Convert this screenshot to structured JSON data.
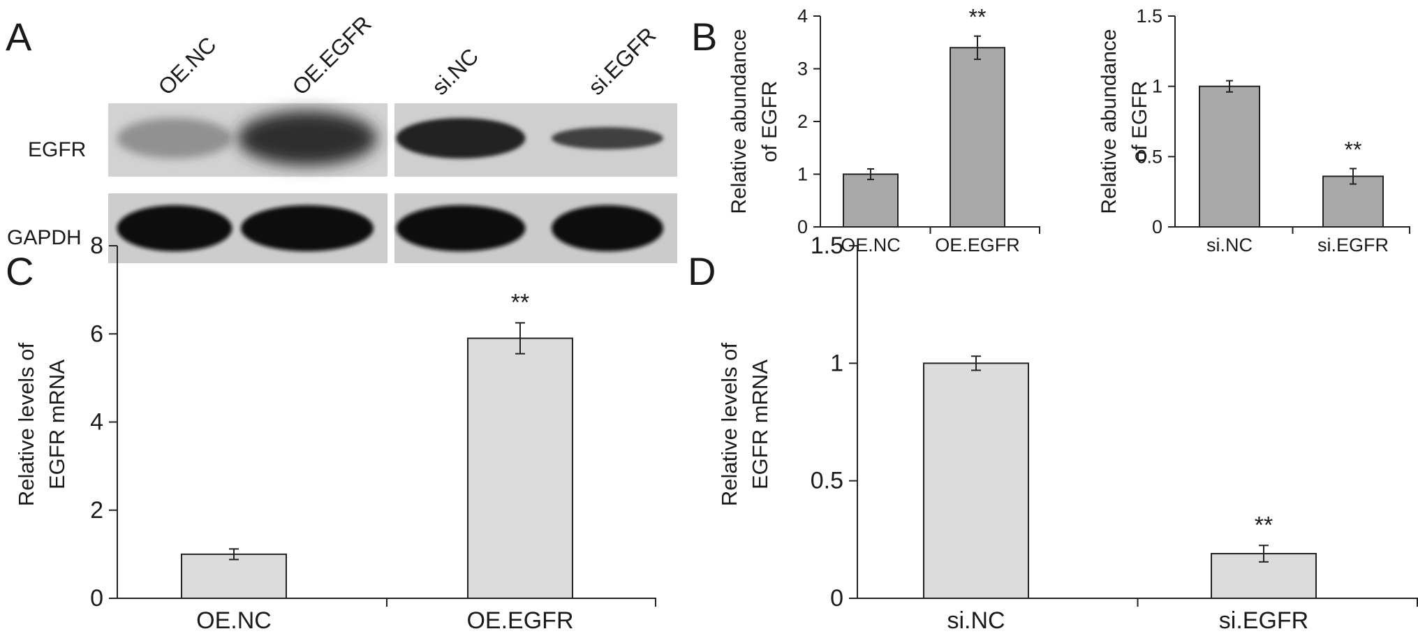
{
  "figure": {
    "panel_labels": {
      "a": "A",
      "b": "B",
      "c": "C",
      "d": "D"
    }
  },
  "blot": {
    "lanes": [
      "OE.NC",
      "OE.EGFR",
      "si.NC",
      "si.EGFR"
    ],
    "rows": [
      "EGFR",
      "GAPDH"
    ],
    "band_intensity": {
      "EGFR": [
        0.35,
        0.85,
        0.9,
        0.75
      ],
      "GAPDH": [
        1.0,
        1.0,
        1.0,
        1.0
      ]
    }
  },
  "chart_data": [
    {
      "id": "B-left",
      "type": "bar",
      "categories": [
        "OE.NC",
        "OE.EGFR"
      ],
      "values": [
        1.0,
        3.4
      ],
      "errors": [
        0.1,
        0.22
      ],
      "significance": [
        "",
        "**"
      ],
      "ylabel_lines": [
        "Relative abundance",
        "of EGFR"
      ],
      "ylim": [
        0,
        4
      ],
      "yticks": [
        0,
        1,
        2,
        3,
        4
      ],
      "ytick_labels": [
        "0",
        "1",
        "2",
        "3",
        "4"
      ],
      "bar_color": "#a9a9a9",
      "grid": false
    },
    {
      "id": "B-right",
      "type": "bar",
      "categories": [
        "si.NC",
        "si.EGFR"
      ],
      "values": [
        1.0,
        0.36
      ],
      "errors": [
        0.04,
        0.055
      ],
      "significance": [
        "",
        "**"
      ],
      "ylabel_lines": [
        "Relative abundance",
        "of EGFR"
      ],
      "ylim": [
        0,
        1.5
      ],
      "yticks": [
        0,
        0.5,
        1,
        1.5
      ],
      "ytick_labels": [
        "0",
        "0.5",
        "1",
        "1.5"
      ],
      "bar_color": "#a9a9a9",
      "grid": false
    },
    {
      "id": "C",
      "type": "bar",
      "categories": [
        "OE.NC",
        "OE.EGFR"
      ],
      "values": [
        1.0,
        5.9
      ],
      "errors": [
        0.12,
        0.35
      ],
      "significance": [
        "",
        "**"
      ],
      "ylabel_lines": [
        "Relative levels of",
        "EGFR mRNA"
      ],
      "ylim": [
        0,
        8
      ],
      "yticks": [
        0,
        2,
        4,
        6,
        8
      ],
      "ytick_labels": [
        "0",
        "2",
        "4",
        "6",
        "8"
      ],
      "bar_color": "#dcdcdc",
      "grid": false
    },
    {
      "id": "D",
      "type": "bar",
      "categories": [
        "si.NC",
        "si.EGFR"
      ],
      "values": [
        1.0,
        0.19
      ],
      "errors": [
        0.03,
        0.035
      ],
      "significance": [
        "",
        "**"
      ],
      "ylabel_lines": [
        "Relative levels of",
        "EGFR mRNA"
      ],
      "ylim": [
        0,
        1.5
      ],
      "yticks": [
        0,
        0.5,
        1,
        1.5
      ],
      "ytick_labels": [
        "0",
        "0.5",
        "1",
        "1.5"
      ],
      "bar_color": "#dcdcdc",
      "grid": false
    }
  ]
}
